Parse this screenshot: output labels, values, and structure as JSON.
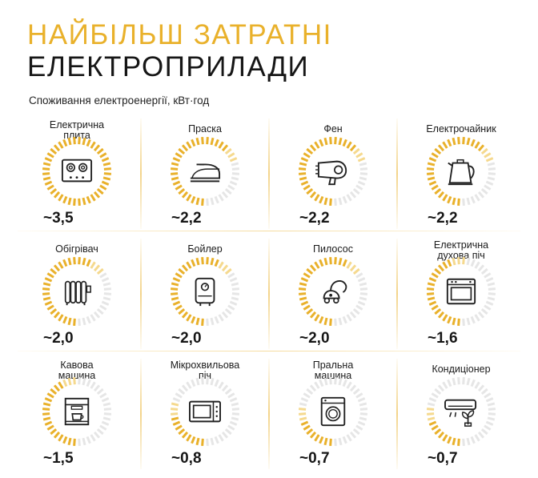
{
  "title": {
    "line1": "НАЙБІЛЬШ ЗАТРАТНІ",
    "line2": "ЕЛЕКТРОПРИЛАДИ"
  },
  "subtitle": "Споживання електроенергії, кВт·год",
  "colors": {
    "accent": "#e9b12b",
    "accent_light": "#f5d98e",
    "tick_empty": "#e6e6e6",
    "text": "#161616"
  },
  "appliances": [
    {
      "label": "Електрична\nплита",
      "value": "~3,5",
      "level": 3.5,
      "icon": "stove-icon"
    },
    {
      "label": "Праска",
      "value": "~2,2",
      "level": 2.2,
      "icon": "iron-icon"
    },
    {
      "label": "Фен",
      "value": "~2,2",
      "level": 2.2,
      "icon": "hair-dryer-icon"
    },
    {
      "label": "Електрочайник",
      "value": "~2,2",
      "level": 2.2,
      "icon": "kettle-icon"
    },
    {
      "label": "Обігрівач",
      "value": "~2,0",
      "level": 2.0,
      "icon": "heater-icon"
    },
    {
      "label": "Бойлер",
      "value": "~2,0",
      "level": 2.0,
      "icon": "boiler-icon"
    },
    {
      "label": "Пилосос",
      "value": "~2,0",
      "level": 2.0,
      "icon": "vacuum-icon"
    },
    {
      "label": "Електрична\nдухова піч",
      "value": "~1,6",
      "level": 1.6,
      "icon": "oven-icon"
    },
    {
      "label": "Кавова\nмашина",
      "value": "~1,5",
      "level": 1.5,
      "icon": "coffee-machine-icon"
    },
    {
      "label": "Мікрохвильова\nпіч",
      "value": "~0,8",
      "level": 0.8,
      "icon": "microwave-icon"
    },
    {
      "label": "Пральна\nмашина",
      "value": "~0,7",
      "level": 0.7,
      "icon": "washing-machine-icon"
    },
    {
      "label": "Кондиціонер",
      "value": "~0,7",
      "level": 0.7,
      "icon": "air-conditioner-icon"
    }
  ],
  "max_level": 3.5
}
